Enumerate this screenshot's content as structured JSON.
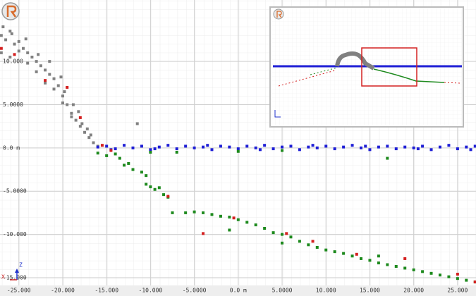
{
  "chart_data": {
    "type": "scatter",
    "xlim": [
      -27.15,
      27.1
    ],
    "ylim": [
      -15.9,
      17.1
    ],
    "xticks": [
      {
        "value": -25,
        "label": "-25.000"
      },
      {
        "value": -20,
        "label": "-20.000"
      },
      {
        "value": -15,
        "label": "-15.000"
      },
      {
        "value": -10,
        "label": "-10.000"
      },
      {
        "value": -5,
        "label": "-5.0000"
      },
      {
        "value": 0,
        "label": "0.0 m"
      },
      {
        "value": 5,
        "label": "5.0000"
      },
      {
        "value": 10,
        "label": "10.000"
      },
      {
        "value": 15,
        "label": "15.000"
      },
      {
        "value": 20,
        "label": "20.000"
      },
      {
        "value": 25,
        "label": "25.000"
      }
    ],
    "yticks": [
      {
        "value": -15,
        "label": "-15.000"
      },
      {
        "value": -10,
        "label": "-10.000"
      },
      {
        "value": -5,
        "label": "-5.0000"
      },
      {
        "value": 0,
        "label": "0.0 m"
      },
      {
        "value": 5,
        "label": "5.0000"
      },
      {
        "value": 10,
        "label": "10.000"
      }
    ],
    "grid": true,
    "axis_icon_labels": {
      "z": "Z",
      "x": "X"
    },
    "series": [
      {
        "color": "#808080",
        "x": [
          -27,
          -26.5,
          -26,
          -25.5,
          -25,
          -24.5,
          -24,
          -23.5,
          -23,
          -22.5,
          -22,
          -21.5,
          -21,
          -20.5,
          -20,
          -19.5,
          -19,
          -18.5,
          -18,
          -17.5,
          -17,
          -16.5,
          -16,
          -27,
          -26,
          -25,
          -24,
          -23,
          -22,
          -21,
          -20,
          -19,
          -26.8,
          -25.8,
          -24.2,
          -22.8,
          -21.5,
          -20.2,
          -19.8,
          -18.8,
          -18.2,
          -17.8,
          -17.2,
          -16.8,
          -11.5
        ],
        "values": [
          13,
          12.5,
          13.5,
          12,
          12.3,
          11.5,
          11,
          10.5,
          10,
          9.5,
          9,
          8.5,
          8,
          7.2,
          6,
          5,
          4,
          3.2,
          2.5,
          1.8,
          1.2,
          0.6,
          0.2,
          11,
          10.5,
          11.2,
          9.8,
          8.8,
          7.5,
          6.8,
          5.2,
          3.6,
          14,
          13.2,
          12.6,
          10.8,
          10,
          8.2,
          6.5,
          5,
          4.2,
          2.8,
          2.2,
          1.5,
          2.8
        ]
      },
      {
        "color": "#1f1fd6",
        "x": [
          -16,
          -15,
          -14,
          -13,
          -12,
          -11,
          -10,
          -9,
          -8,
          -7,
          -6,
          -5,
          -4,
          -3,
          -2,
          -1,
          0,
          1,
          2,
          3,
          4,
          5,
          6,
          7,
          8,
          9,
          10,
          11,
          12,
          13,
          14,
          15,
          16,
          17,
          18,
          19,
          20,
          21,
          22,
          23,
          24,
          25,
          26,
          27,
          -14.5,
          -9.5,
          -3.5,
          2.5,
          8.5,
          14.5,
          20.5,
          26.5
        ],
        "values": [
          0.1,
          0.2,
          -0.1,
          0.3,
          0,
          0.2,
          -0.2,
          0.1,
          0.3,
          -0.1,
          0.2,
          0,
          0.1,
          -0.2,
          0.2,
          0.1,
          -0.1,
          0.2,
          0,
          0.3,
          -0.1,
          0.1,
          0.2,
          -0.2,
          0.1,
          0,
          0.2,
          -0.1,
          0.1,
          0.3,
          0,
          -0.2,
          0.1,
          0.2,
          -0.1,
          0.1,
          0,
          0.2,
          -0.2,
          0.1,
          0.3,
          -0.1,
          0.1,
          0.2,
          -0.2,
          -0.1,
          0.3,
          -0.2,
          0.3,
          0.2,
          -0.1,
          -0.2
        ]
      },
      {
        "color": "#1e8a1e",
        "x": [
          -16,
          -15,
          -14,
          -13.5,
          -13,
          -12.5,
          -12,
          -11,
          -10.5,
          -10.5,
          -10,
          -9.5,
          -9,
          -8.5,
          -8,
          -7.5,
          -6,
          -5,
          -4,
          -3,
          -2,
          -1,
          0,
          1,
          2,
          3,
          4,
          5,
          6,
          7,
          8,
          9,
          10,
          11,
          12,
          13,
          14,
          15,
          16,
          17,
          18,
          19,
          20,
          21,
          22,
          23,
          24,
          25,
          26,
          27,
          -10,
          -7,
          0,
          17,
          5,
          -1,
          5,
          16
        ],
        "values": [
          -0.6,
          -0.9,
          -0.7,
          -1.2,
          -2,
          -1.8,
          -2.5,
          -2.8,
          -3.2,
          -4.2,
          -4.5,
          -4.8,
          -4.6,
          -5.4,
          -5.7,
          -7.5,
          -7.5,
          -7.4,
          -7.5,
          -7.7,
          -7.9,
          -8,
          -8.3,
          -8.6,
          -8.9,
          -9.3,
          -9.8,
          -10,
          -10.3,
          -10.8,
          -11.2,
          -11.5,
          -11.8,
          -12,
          -12.2,
          -12.5,
          -12.8,
          -13,
          -13.3,
          -13.5,
          -13.7,
          -13.9,
          -14.1,
          -14.3,
          -14.5,
          -14.7,
          -14.9,
          -15.1,
          -15.3,
          -15.5,
          -0.5,
          -0.5,
          -0.4,
          -1.2,
          -0.3,
          -9.5,
          -11,
          -12.5
        ]
      },
      {
        "color": "#d42020",
        "x": [
          -27,
          -25.5,
          -22,
          -19.5,
          -18,
          -15.5,
          -8,
          -4,
          -0.5,
          5.5,
          8.5,
          13.5,
          19,
          25,
          27,
          -14.5
        ],
        "values": [
          11.5,
          10.8,
          7.8,
          7,
          3.5,
          0.3,
          -5.6,
          -9.9,
          -8.1,
          -9.9,
          -10.8,
          -12.3,
          -12.8,
          -14.6,
          -15.5,
          -0.3
        ]
      }
    ]
  }
}
